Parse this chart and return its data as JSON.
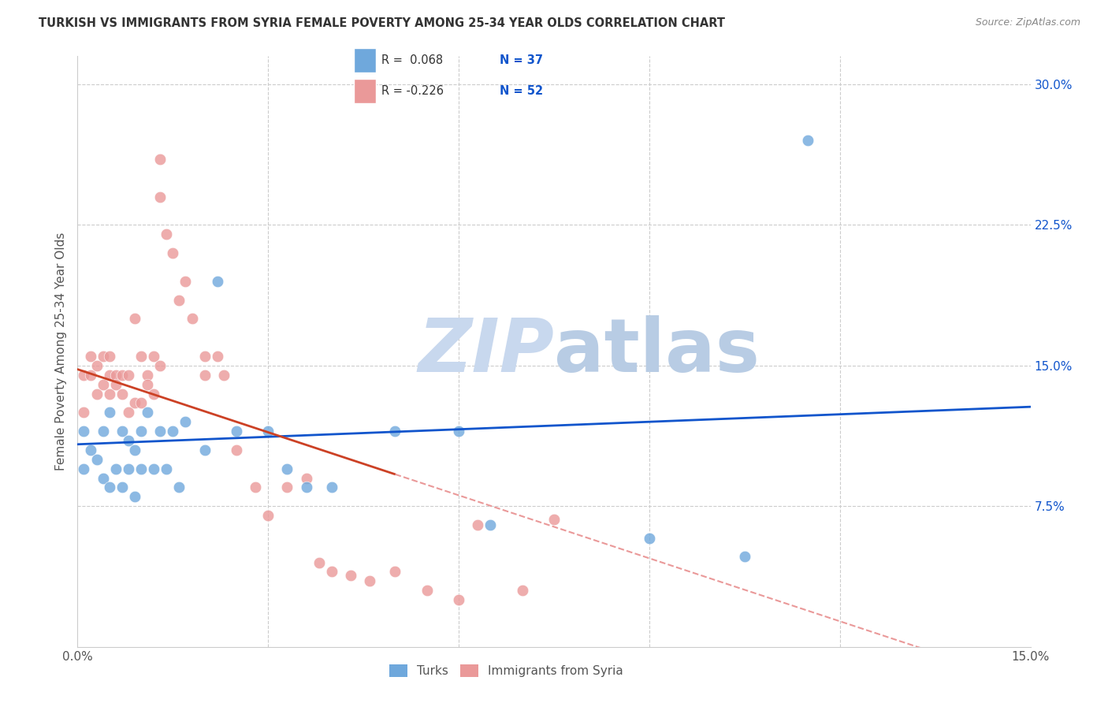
{
  "title": "TURKISH VS IMMIGRANTS FROM SYRIA FEMALE POVERTY AMONG 25-34 YEAR OLDS CORRELATION CHART",
  "source": "Source: ZipAtlas.com",
  "ylabel": "Female Poverty Among 25-34 Year Olds",
  "ytick_labels": [
    "30.0%",
    "22.5%",
    "15.0%",
    "7.5%"
  ],
  "ytick_values": [
    0.3,
    0.225,
    0.15,
    0.075
  ],
  "xlim": [
    0.0,
    0.15
  ],
  "ylim": [
    0.0,
    0.315
  ],
  "blue_color": "#6fa8dc",
  "pink_color": "#ea9999",
  "blue_line_color": "#1155cc",
  "pink_line_color": "#cc4125",
  "pink_dash_color": "#ea9999",
  "watermark_zip": "ZIP",
  "watermark_atlas": "atlas",
  "turks_x": [
    0.001,
    0.001,
    0.002,
    0.003,
    0.004,
    0.004,
    0.005,
    0.005,
    0.006,
    0.007,
    0.007,
    0.008,
    0.008,
    0.009,
    0.009,
    0.01,
    0.01,
    0.011,
    0.012,
    0.013,
    0.014,
    0.015,
    0.016,
    0.017,
    0.02,
    0.022,
    0.025,
    0.03,
    0.033,
    0.036,
    0.04,
    0.05,
    0.06,
    0.065,
    0.09,
    0.105,
    0.115
  ],
  "turks_y": [
    0.115,
    0.095,
    0.105,
    0.1,
    0.09,
    0.115,
    0.085,
    0.125,
    0.095,
    0.115,
    0.085,
    0.11,
    0.095,
    0.105,
    0.08,
    0.115,
    0.095,
    0.125,
    0.095,
    0.115,
    0.095,
    0.115,
    0.085,
    0.12,
    0.105,
    0.195,
    0.115,
    0.115,
    0.095,
    0.085,
    0.085,
    0.115,
    0.115,
    0.065,
    0.058,
    0.048,
    0.27
  ],
  "syria_x": [
    0.001,
    0.001,
    0.002,
    0.002,
    0.003,
    0.003,
    0.004,
    0.004,
    0.005,
    0.005,
    0.005,
    0.006,
    0.006,
    0.007,
    0.007,
    0.008,
    0.008,
    0.009,
    0.009,
    0.01,
    0.01,
    0.011,
    0.011,
    0.012,
    0.012,
    0.013,
    0.013,
    0.013,
    0.014,
    0.015,
    0.016,
    0.017,
    0.018,
    0.02,
    0.02,
    0.022,
    0.023,
    0.025,
    0.028,
    0.03,
    0.033,
    0.036,
    0.038,
    0.04,
    0.043,
    0.046,
    0.05,
    0.055,
    0.06,
    0.063,
    0.07,
    0.075
  ],
  "syria_y": [
    0.145,
    0.125,
    0.155,
    0.145,
    0.15,
    0.135,
    0.155,
    0.14,
    0.145,
    0.155,
    0.135,
    0.145,
    0.14,
    0.145,
    0.135,
    0.145,
    0.125,
    0.175,
    0.13,
    0.155,
    0.13,
    0.145,
    0.14,
    0.155,
    0.135,
    0.26,
    0.24,
    0.15,
    0.22,
    0.21,
    0.185,
    0.195,
    0.175,
    0.155,
    0.145,
    0.155,
    0.145,
    0.105,
    0.085,
    0.07,
    0.085,
    0.09,
    0.045,
    0.04,
    0.038,
    0.035,
    0.04,
    0.03,
    0.025,
    0.065,
    0.03,
    0.068
  ],
  "blue_slope": 0.068,
  "blue_intercept": 0.108,
  "pink_slope": -0.226,
  "pink_intercept": 0.145
}
